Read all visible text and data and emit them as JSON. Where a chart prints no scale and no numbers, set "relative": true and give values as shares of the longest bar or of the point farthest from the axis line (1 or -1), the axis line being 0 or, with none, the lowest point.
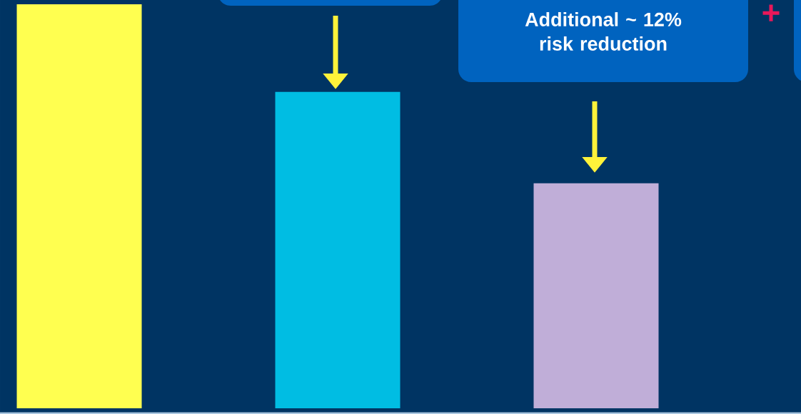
{
  "chart_data": {
    "type": "bar",
    "relative": true,
    "categories": [
      null,
      null,
      null
    ],
    "values": [
      1,
      0.783,
      0.557
    ],
    "colors": [
      "#ffff50",
      "#00bde3",
      "#c0aed8"
    ],
    "annotations": [
      "Additional ~ 12% risk reduction",
      "+"
    ]
  }
}
